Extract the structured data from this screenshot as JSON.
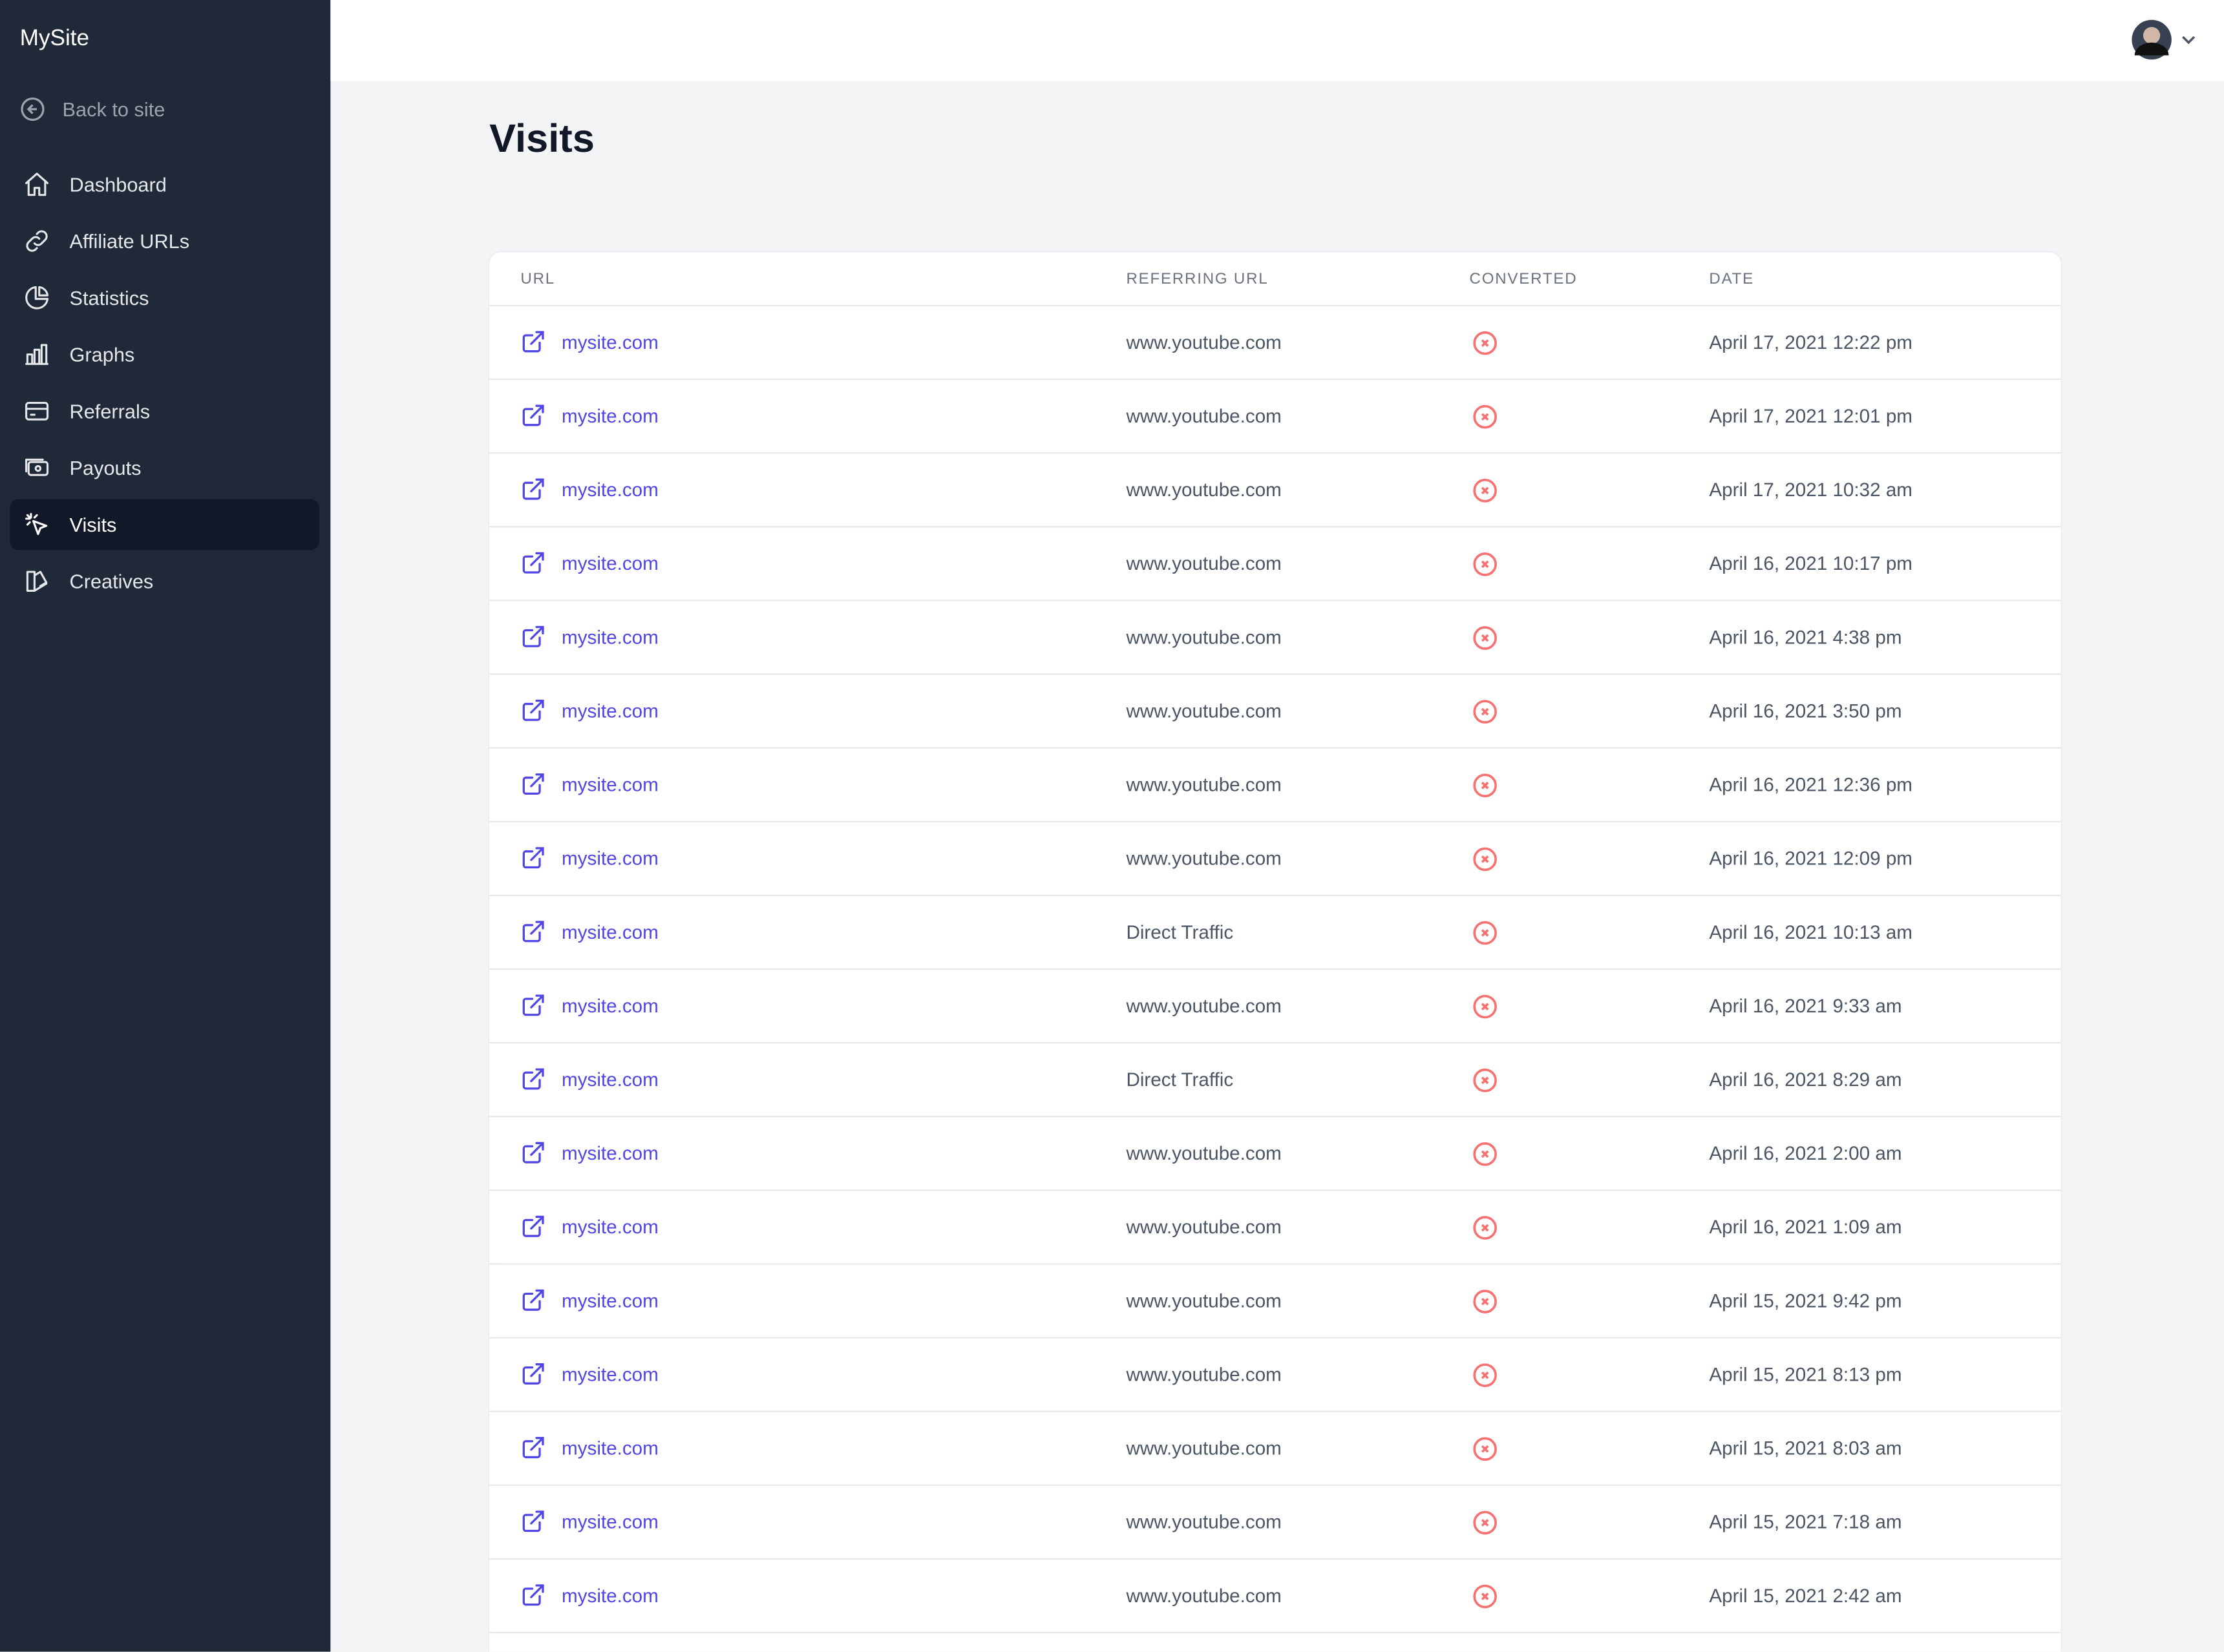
{
  "sidebar": {
    "brand": "MySite",
    "back_link": "Back to site",
    "nav": [
      "Dashboard",
      "Affiliate URLs",
      "Statistics",
      "Graphs",
      "Referrals",
      "Payouts",
      "Visits",
      "Creatives"
    ],
    "active": "Visits"
  },
  "page": {
    "title": "Visits"
  },
  "table": {
    "columns": [
      "URL",
      "REFERRING URL",
      "CONVERTED",
      "DATE"
    ],
    "rows": [
      [
        "mysite.com",
        "www.youtube.com",
        "April 17, 2021 12:22 pm"
      ],
      [
        "mysite.com",
        "www.youtube.com",
        "April 17, 2021 12:01 pm"
      ],
      [
        "mysite.com",
        "www.youtube.com",
        "April 17, 2021 10:32 am"
      ],
      [
        "mysite.com",
        "www.youtube.com",
        "April 16, 2021 10:17 pm"
      ],
      [
        "mysite.com",
        "www.youtube.com",
        "April 16, 2021 4:38 pm"
      ],
      [
        "mysite.com",
        "www.youtube.com",
        "April 16, 2021 3:50 pm"
      ],
      [
        "mysite.com",
        "www.youtube.com",
        "April 16, 2021 12:36 pm"
      ],
      [
        "mysite.com",
        "www.youtube.com",
        "April 16, 2021 12:09 pm"
      ],
      [
        "mysite.com",
        "Direct Traffic",
        "April 16, 2021 10:13 am"
      ],
      [
        "mysite.com",
        "www.youtube.com",
        "April 16, 2021 9:33 am"
      ],
      [
        "mysite.com",
        "Direct Traffic",
        "April 16, 2021 8:29 am"
      ],
      [
        "mysite.com",
        "www.youtube.com",
        "April 16, 2021 2:00 am"
      ],
      [
        "mysite.com",
        "www.youtube.com",
        "April 16, 2021 1:09 am"
      ],
      [
        "mysite.com",
        "www.youtube.com",
        "April 15, 2021 9:42 pm"
      ],
      [
        "mysite.com",
        "www.youtube.com",
        "April 15, 2021 8:13 pm"
      ],
      [
        "mysite.com",
        "www.youtube.com",
        "April 15, 2021 8:03 am"
      ],
      [
        "mysite.com",
        "www.youtube.com",
        "April 15, 2021 7:18 am"
      ],
      [
        "mysite.com",
        "www.youtube.com",
        "April 15, 2021 2:42 am"
      ]
    ]
  }
}
